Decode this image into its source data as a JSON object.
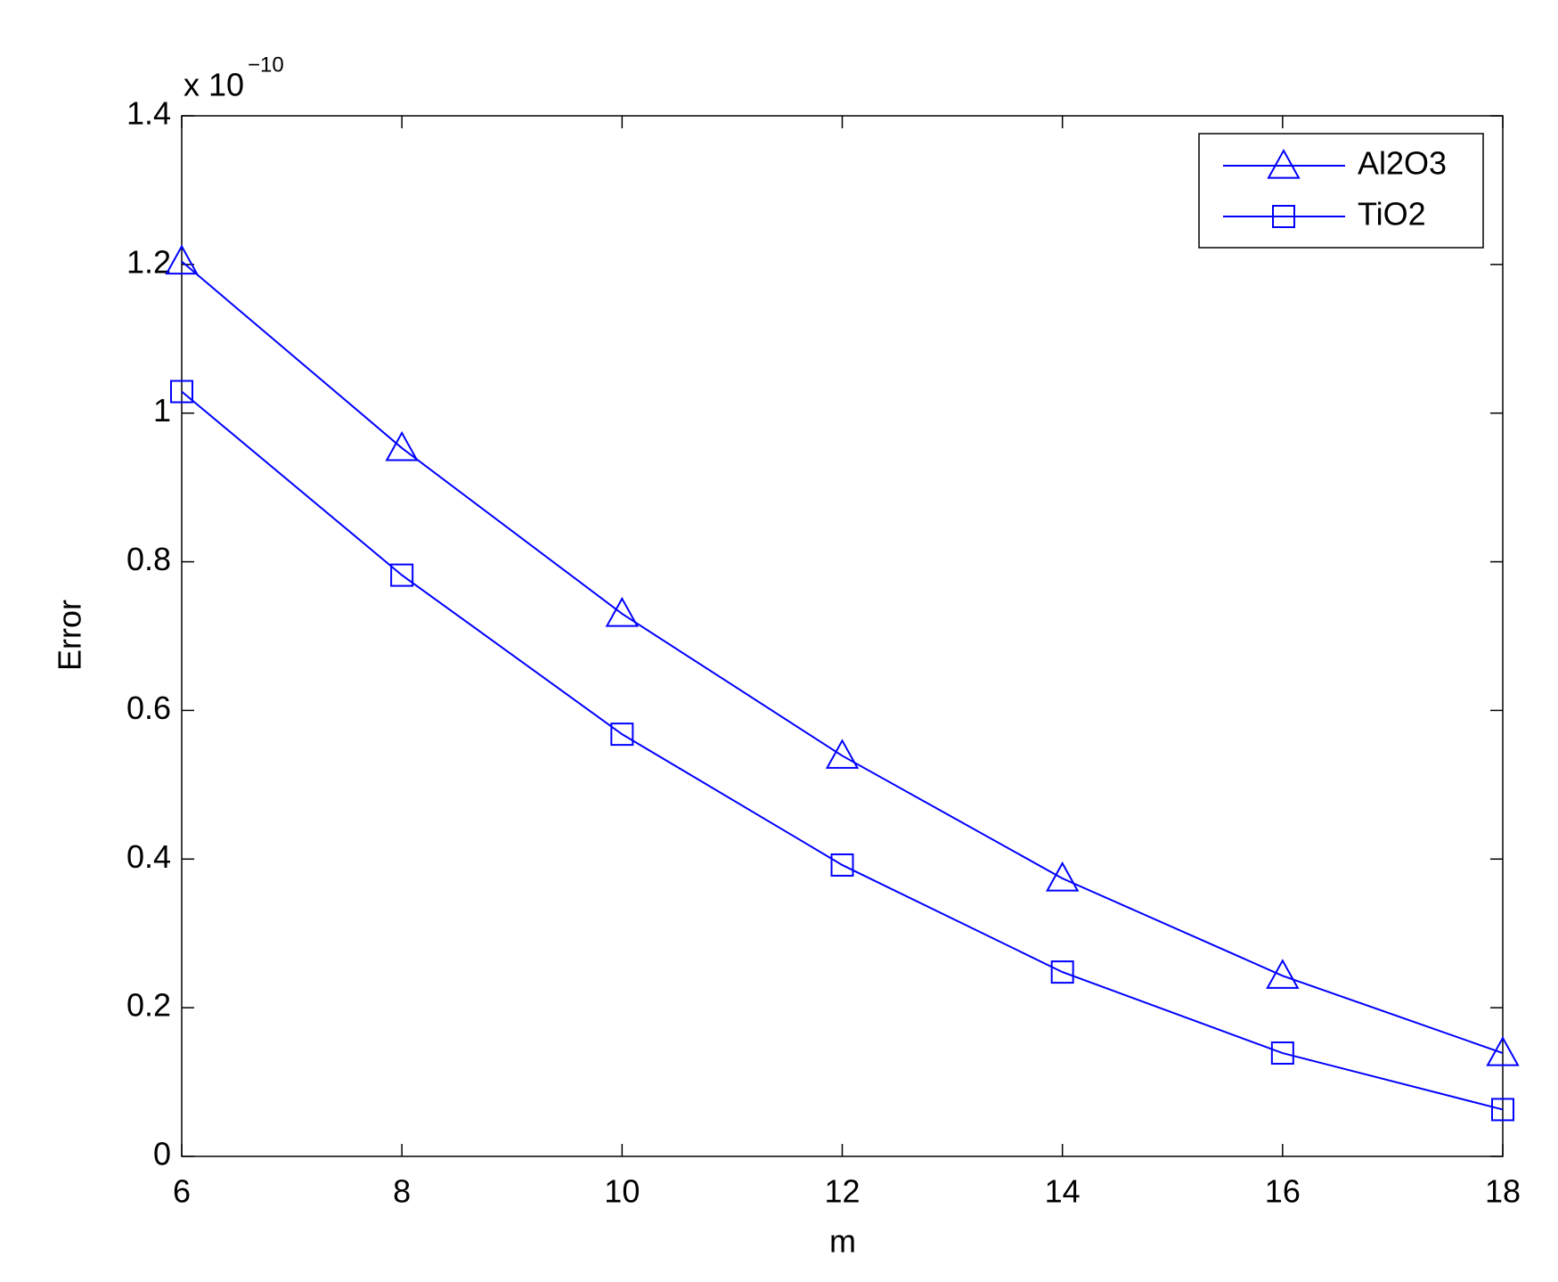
{
  "chart_data": {
    "type": "line",
    "x_label": "m",
    "y_label": "Error",
    "y_scale_base": "x 10",
    "y_scale_exponent": "−10",
    "x": [
      6,
      8,
      10,
      12,
      14,
      16,
      18
    ],
    "series": [
      {
        "name": "Al2O3",
        "color": "#0000ff",
        "marker": "triangle",
        "values": [
          1.204,
          0.953,
          0.73,
          0.539,
          0.374,
          0.243,
          0.139
        ]
      },
      {
        "name": "TiO2",
        "color": "#0000ff",
        "marker": "square",
        "values": [
          1.029,
          0.782,
          0.568,
          0.392,
          0.248,
          0.139,
          0.063
        ]
      }
    ],
    "xlim": [
      6,
      18
    ],
    "ylim": [
      0,
      1.4
    ],
    "xticks": [
      6,
      8,
      10,
      12,
      14,
      16,
      18
    ],
    "yticks": [
      0,
      0.2,
      0.4,
      0.6,
      0.8,
      1,
      1.2,
      1.4
    ],
    "grid": false,
    "legend": "upper right"
  }
}
